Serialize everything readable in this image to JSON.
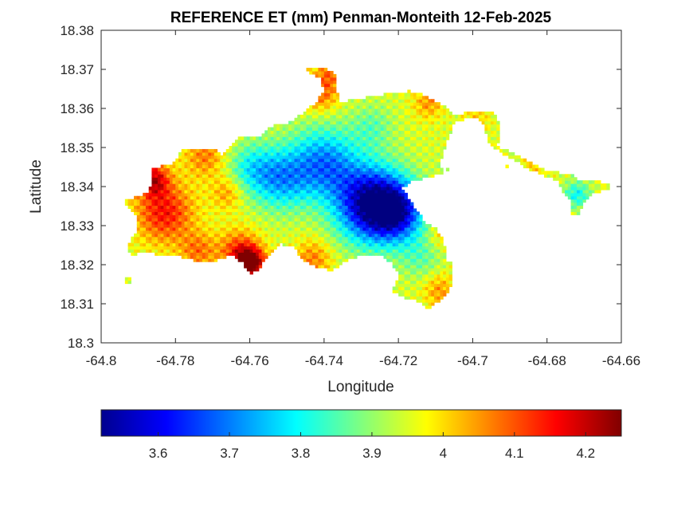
{
  "chart_data": {
    "type": "heatmap",
    "title": "REFERENCE ET (mm) Penman-Monteith 12-Feb-2025",
    "xlabel": "Longitude",
    "ylabel": "Latitude",
    "xlim": [
      -64.8,
      -64.66
    ],
    "ylim": [
      18.3,
      18.38
    ],
    "x_ticks": [
      -64.8,
      -64.78,
      -64.76,
      -64.74,
      -64.72,
      -64.7,
      -64.68,
      -64.66
    ],
    "x_tick_labels": [
      "-64.8",
      "-64.78",
      "-64.76",
      "-64.74",
      "-64.72",
      "-64.7",
      "-64.68",
      "-64.66"
    ],
    "y_ticks": [
      18.3,
      18.31,
      18.32,
      18.33,
      18.34,
      18.35,
      18.36,
      18.37,
      18.38
    ],
    "y_tick_labels": [
      "18.3",
      "18.31",
      "18.32",
      "18.33",
      "18.34",
      "18.35",
      "18.36",
      "18.37",
      "18.38"
    ],
    "grid": false,
    "colormap": "jet",
    "colorbar": {
      "orientation": "horizontal",
      "location": "below",
      "range": [
        3.52,
        4.25
      ],
      "ticks": [
        3.6,
        3.7,
        3.8,
        3.9,
        4.0,
        4.1,
        4.2
      ],
      "tick_labels": [
        "3.6",
        "3.7",
        "3.8",
        "3.9",
        "4",
        "4.1",
        "4.2"
      ]
    },
    "region": {
      "outline": [
        [
          -64.794,
          18.3365
        ],
        [
          -64.787,
          18.3385
        ],
        [
          -64.786,
          18.345
        ],
        [
          -64.781,
          18.3455
        ],
        [
          -64.778,
          18.3495
        ],
        [
          -64.769,
          18.3495
        ],
        [
          -64.768,
          18.348
        ],
        [
          -64.763,
          18.3525
        ],
        [
          -64.76,
          18.3525
        ],
        [
          -64.757,
          18.353
        ],
        [
          -64.755,
          18.3555
        ],
        [
          -64.75,
          18.356
        ],
        [
          -64.745,
          18.3595
        ],
        [
          -64.742,
          18.3615
        ],
        [
          -64.741,
          18.3635
        ],
        [
          -64.74,
          18.3645
        ],
        [
          -64.741,
          18.368
        ],
        [
          -64.744,
          18.369
        ],
        [
          -64.745,
          18.3705
        ],
        [
          -64.7395,
          18.3705
        ],
        [
          -64.737,
          18.3685
        ],
        [
          -64.736,
          18.3615
        ],
        [
          -64.732,
          18.3625
        ],
        [
          -64.727,
          18.363
        ],
        [
          -64.722,
          18.364
        ],
        [
          -64.717,
          18.3645
        ],
        [
          -64.713,
          18.3635
        ],
        [
          -64.709,
          18.3615
        ],
        [
          -64.705,
          18.3585
        ],
        [
          -64.696,
          18.3595
        ],
        [
          -64.6935,
          18.3585
        ],
        [
          -64.693,
          18.3555
        ],
        [
          -64.6925,
          18.3515
        ],
        [
          -64.6945,
          18.3505
        ],
        [
          -64.691,
          18.3495
        ],
        [
          -64.688,
          18.348
        ],
        [
          -64.685,
          18.3465
        ],
        [
          -64.681,
          18.3445
        ],
        [
          -64.676,
          18.3435
        ],
        [
          -64.673,
          18.343
        ],
        [
          -64.6715,
          18.3415
        ],
        [
          -64.6685,
          18.342
        ],
        [
          -64.6665,
          18.3415
        ],
        [
          -64.663,
          18.3405
        ],
        [
          -64.664,
          18.339
        ],
        [
          -64.6675,
          18.3385
        ],
        [
          -64.6705,
          18.3355
        ],
        [
          -64.6715,
          18.3325
        ],
        [
          -64.6735,
          18.333
        ],
        [
          -64.674,
          18.3365
        ],
        [
          -64.676,
          18.3385
        ],
        [
          -64.677,
          18.3415
        ],
        [
          -64.68,
          18.3425
        ],
        [
          -64.685,
          18.3445
        ],
        [
          -64.69,
          18.3475
        ],
        [
          -64.6955,
          18.3505
        ],
        [
          -64.6975,
          18.3565
        ],
        [
          -64.7,
          18.358
        ],
        [
          -64.705,
          18.3565
        ],
        [
          -64.707,
          18.3515
        ],
        [
          -64.709,
          18.3455
        ],
        [
          -64.708,
          18.344
        ],
        [
          -64.705,
          18.3455
        ],
        [
          -64.708,
          18.3435
        ],
        [
          -64.712,
          18.3425
        ],
        [
          -64.716,
          18.3415
        ],
        [
          -64.719,
          18.3395
        ],
        [
          -64.7155,
          18.3345
        ],
        [
          -64.713,
          18.331
        ],
        [
          -64.71,
          18.3295
        ],
        [
          -64.708,
          18.3265
        ],
        [
          -64.707,
          18.3225
        ],
        [
          -64.708,
          18.3215
        ],
        [
          -64.7055,
          18.3205
        ],
        [
          -64.7055,
          18.3155
        ],
        [
          -64.707,
          18.312
        ],
        [
          -64.7095,
          18.3105
        ],
        [
          -64.7125,
          18.3085
        ],
        [
          -64.714,
          18.3105
        ],
        [
          -64.718,
          18.3115
        ],
        [
          -64.72,
          18.3125
        ],
        [
          -64.722,
          18.3135
        ],
        [
          -64.7195,
          18.3175
        ],
        [
          -64.722,
          18.3205
        ],
        [
          -64.724,
          18.322
        ],
        [
          -64.73,
          18.3225
        ],
        [
          -64.735,
          18.3205
        ],
        [
          -64.738,
          18.3185
        ],
        [
          -64.742,
          18.3195
        ],
        [
          -64.746,
          18.3215
        ],
        [
          -64.748,
          18.3245
        ],
        [
          -64.752,
          18.3255
        ],
        [
          -64.755,
          18.3225
        ],
        [
          -64.758,
          18.3185
        ],
        [
          -64.76,
          18.3175
        ],
        [
          -64.762,
          18.3205
        ],
        [
          -64.765,
          18.3225
        ],
        [
          -64.768,
          18.3215
        ],
        [
          -64.772,
          18.3205
        ],
        [
          -64.776,
          18.3215
        ],
        [
          -64.78,
          18.3225
        ],
        [
          -64.784,
          18.3225
        ],
        [
          -64.788,
          18.3235
        ],
        [
          -64.792,
          18.3225
        ],
        [
          -64.793,
          18.3245
        ],
        [
          -64.79,
          18.3295
        ],
        [
          -64.791,
          18.3335
        ],
        [
          -64.794,
          18.3355
        ]
      ],
      "islets": [
        [
          [
            -64.7935,
            18.3155
          ],
          [
            -64.792,
            18.3155
          ],
          [
            -64.792,
            18.3165
          ],
          [
            -64.7935,
            18.3165
          ]
        ],
        [
          [
            -64.6915,
            18.3445
          ],
          [
            -64.6905,
            18.3445
          ],
          [
            -64.6905,
            18.3455
          ],
          [
            -64.6915,
            18.3455
          ]
        ]
      ]
    },
    "value_field": {
      "base": 3.95,
      "components": [
        {
          "lon": -64.727,
          "lat": 18.3355,
          "value": -0.43,
          "spread": 0.0068
        },
        {
          "lon": -64.72,
          "lat": 18.3335,
          "value": -0.25,
          "spread": 0.005
        },
        {
          "lon": -64.74,
          "lat": 18.346,
          "value": -0.24,
          "spread": 0.0065
        },
        {
          "lon": -64.752,
          "lat": 18.342,
          "value": -0.2,
          "spread": 0.0055
        },
        {
          "lon": -64.76,
          "lat": 18.345,
          "value": -0.12,
          "spread": 0.0045
        },
        {
          "lon": -64.727,
          "lat": 18.3555,
          "value": -0.08,
          "spread": 0.004
        },
        {
          "lon": -64.714,
          "lat": 18.322,
          "value": -0.08,
          "spread": 0.004
        },
        {
          "lon": -64.672,
          "lat": 18.338,
          "value": -0.15,
          "spread": 0.0025
        },
        {
          "lon": -64.706,
          "lat": 18.346,
          "value": -0.06,
          "spread": 0.002
        },
        {
          "lon": -64.783,
          "lat": 18.3335,
          "value": 0.2,
          "spread": 0.0055
        },
        {
          "lon": -64.786,
          "lat": 18.342,
          "value": 0.22,
          "spread": 0.003
        },
        {
          "lon": -64.76,
          "lat": 18.3205,
          "value": 0.33,
          "spread": 0.0028
        },
        {
          "lon": -64.763,
          "lat": 18.3235,
          "value": 0.16,
          "spread": 0.004
        },
        {
          "lon": -64.774,
          "lat": 18.3235,
          "value": 0.12,
          "spread": 0.0035
        },
        {
          "lon": -64.743,
          "lat": 18.3215,
          "value": 0.12,
          "spread": 0.0035
        },
        {
          "lon": -64.741,
          "lat": 18.3645,
          "value": 0.15,
          "spread": 0.0035
        },
        {
          "lon": -64.738,
          "lat": 18.3695,
          "value": 0.09,
          "spread": 0.0025
        },
        {
          "lon": -64.772,
          "lat": 18.348,
          "value": 0.12,
          "spread": 0.004
        },
        {
          "lon": -64.766,
          "lat": 18.3385,
          "value": 0.1,
          "spread": 0.003
        },
        {
          "lon": -64.709,
          "lat": 18.3135,
          "value": 0.1,
          "spread": 0.003
        },
        {
          "lon": -64.712,
          "lat": 18.3615,
          "value": 0.1,
          "spread": 0.0028
        },
        {
          "lon": -64.699,
          "lat": 18.3575,
          "value": 0.06,
          "spread": 0.0025
        },
        {
          "lon": -64.683,
          "lat": 18.3455,
          "value": 0.06,
          "spread": 0.0025
        },
        {
          "lon": -64.709,
          "lat": 18.3275,
          "value": 0.06,
          "spread": 0.0025
        }
      ]
    }
  }
}
